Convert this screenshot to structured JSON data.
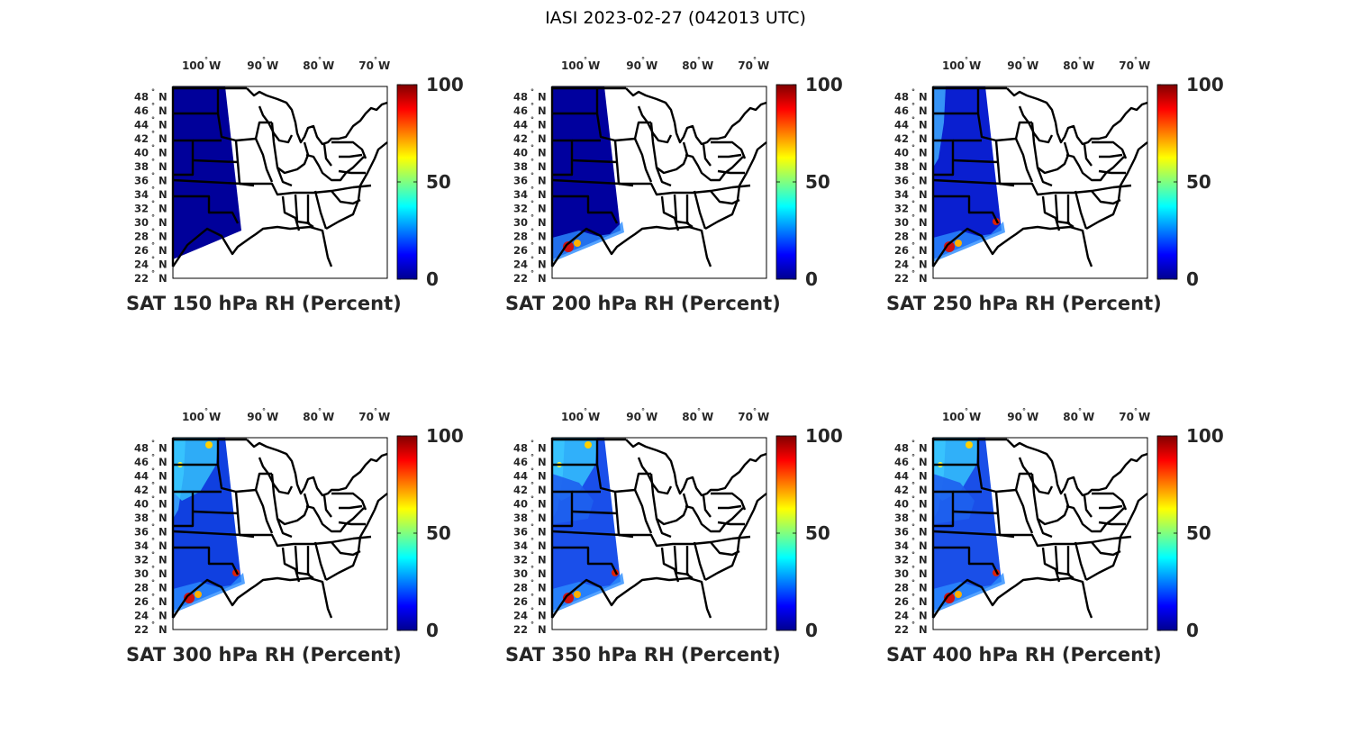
{
  "title": "IASI 2023-02-27 (042013 UTC)",
  "lon_ticks": [
    {
      "value": 100,
      "num": "100",
      "hem": "W"
    },
    {
      "value": 90,
      "num": "90",
      "hem": "W"
    },
    {
      "value": 80,
      "num": "80",
      "hem": "W"
    },
    {
      "value": 70,
      "num": "70",
      "hem": "W"
    }
  ],
  "lat_ticks": [
    {
      "value": 48,
      "num": "48",
      "hem": "N"
    },
    {
      "value": 46,
      "num": "46",
      "hem": "N"
    },
    {
      "value": 44,
      "num": "44",
      "hem": "N"
    },
    {
      "value": 42,
      "num": "42",
      "hem": "N"
    },
    {
      "value": 40,
      "num": "40",
      "hem": "N"
    },
    {
      "value": 38,
      "num": "38",
      "hem": "N"
    },
    {
      "value": 36,
      "num": "36",
      "hem": "N"
    },
    {
      "value": 34,
      "num": "34",
      "hem": "N"
    },
    {
      "value": 32,
      "num": "32",
      "hem": "N"
    },
    {
      "value": 30,
      "num": "30",
      "hem": "N"
    },
    {
      "value": 28,
      "num": "28",
      "hem": "N"
    },
    {
      "value": 26,
      "num": "26",
      "hem": "N"
    },
    {
      "value": 24,
      "num": "24",
      "hem": "N"
    },
    {
      "value": 22,
      "num": "22",
      "hem": "N"
    }
  ],
  "degree_symbol": "°",
  "colorbar": {
    "ticks": [
      0,
      50,
      100
    ],
    "labels": [
      "0",
      "50",
      "100"
    ],
    "colormap": "jet"
  },
  "panels": [
    {
      "label": "SAT 150 hPa RH (Percent)",
      "level_hPa": 150,
      "rh_band": "dry"
    },
    {
      "label": "SAT 200 hPa RH (Percent)",
      "level_hPa": 200,
      "rh_band": "dry, moist in far south"
    },
    {
      "label": "SAT 250 hPa RH (Percent)",
      "level_hPa": 250,
      "rh_band": "dry, moist in south"
    },
    {
      "label": "SAT 300 hPa RH (Percent)",
      "level_hPa": 300,
      "rh_band": "mixed"
    },
    {
      "label": "SAT 350 hPa RH (Percent)",
      "level_hPa": 350,
      "rh_band": "moist north, dry south"
    },
    {
      "label": "SAT 400 hPa RH (Percent)",
      "level_hPa": 400,
      "rh_band": "moist north, dry south"
    }
  ],
  "colors": {
    "jet_low": "#00008f",
    "jet_mid": "#80ff80",
    "jet_high": "#800000",
    "border": "#000000"
  }
}
